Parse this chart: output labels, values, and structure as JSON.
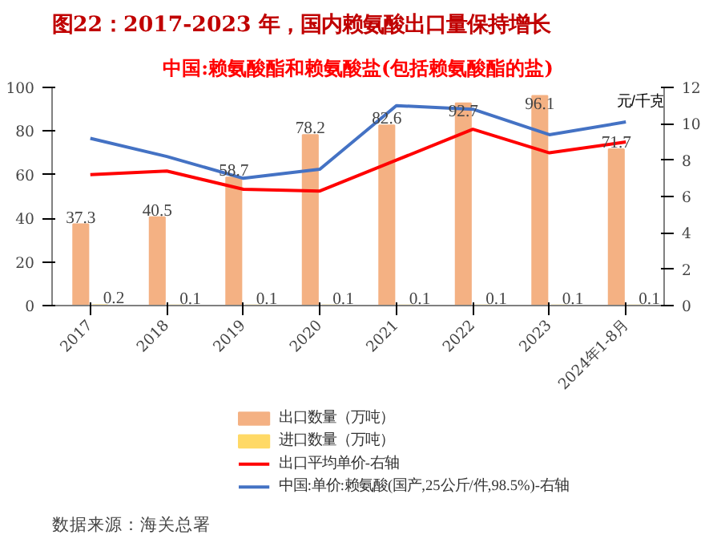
{
  "chart_data": {
    "type": "bar",
    "title": "图22：2017-2023 年，国内赖氨酸出口量保持增长",
    "subtitle": "中国:赖氨酸酯和赖氨酸盐(包括赖氨酸酯的盐)",
    "y2label": "元/千克",
    "categories": [
      "2017",
      "2018",
      "2019",
      "2020",
      "2021",
      "2022",
      "2023",
      "2024年1-8月"
    ],
    "series": [
      {
        "name": "出口数量（万吨）",
        "color": "#f4b183",
        "values": [
          37.3,
          40.5,
          58.7,
          78.2,
          82.6,
          92.7,
          96.1,
          71.7
        ],
        "value_labels": [
          "37.3",
          "40.5",
          "58.7",
          "78.2",
          "82.6",
          "92.7",
          "96.1",
          "71.7"
        ]
      },
      {
        "name": "进口数量（万吨）",
        "color": "#ffd966",
        "values": [
          0.2,
          0.1,
          0.1,
          0.1,
          0.1,
          0.1,
          0.1,
          0.1
        ],
        "value_labels": [
          "0.2",
          "0.1",
          "0.1",
          "0.1",
          "0.1",
          "0.1",
          "0.1",
          "0.1"
        ]
      },
      {
        "name": "出口平均单价-右轴",
        "type": "line",
        "axis": "y2",
        "color": "#ff0000",
        "values": [
          7.2,
          7.4,
          6.4,
          6.3,
          8.0,
          9.7,
          8.4,
          9.0
        ]
      },
      {
        "name": "中国:单价:赖氨酸(国产,25公斤/件,98.5%)-右轴",
        "type": "line",
        "axis": "y2",
        "color": "#4472c4",
        "values": [
          9.2,
          8.2,
          7.0,
          7.5,
          11.0,
          10.8,
          9.4,
          10.1
        ]
      }
    ],
    "ylim": [
      0,
      100
    ],
    "yticks": [
      0,
      20,
      40,
      60,
      80,
      100
    ],
    "y2lim": [
      0,
      12
    ],
    "y2ticks": [
      0,
      2,
      4,
      6,
      8,
      10,
      12
    ],
    "legend": "bottom",
    "grid": false,
    "marker": "none",
    "annotations": [
      "数据来源：海关总署"
    ]
  }
}
